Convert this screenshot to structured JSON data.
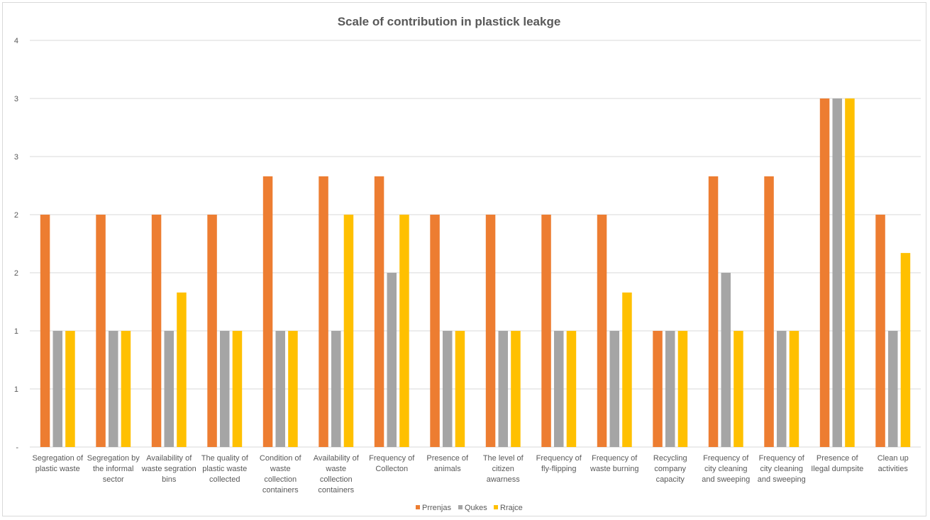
{
  "chart_data": {
    "type": "bar",
    "title": "Scale of contribution in plastick leakge",
    "xlabel": "",
    "ylabel": "",
    "ylim": [
      0,
      3.5
    ],
    "y_tick_values": [
      0,
      0.5,
      1,
      1.5,
      2,
      2.5,
      3,
      3.5
    ],
    "y_tick_labels": [
      "-",
      "1",
      "1",
      "2",
      "2",
      "3",
      "3",
      "4"
    ],
    "grid": true,
    "legend_position": "bottom",
    "categories": [
      [
        "Segregation of",
        "plastic waste"
      ],
      [
        "Segregation by",
        "the informal",
        "sector"
      ],
      [
        "Availability of",
        "waste segration",
        "bins"
      ],
      [
        "The quality of",
        "plastic waste",
        "collected"
      ],
      [
        "Condition of",
        "waste",
        "collection",
        "containers"
      ],
      [
        "Availability of",
        "waste",
        "collection",
        "containers"
      ],
      [
        "Frequency of",
        "Collecton"
      ],
      [
        "Presence of",
        "animals"
      ],
      [
        "The level of",
        "citizen",
        "awarness"
      ],
      [
        "Frequency of",
        "fly-flipping"
      ],
      [
        "Frequency of",
        "waste burning"
      ],
      [
        "Recycling",
        "company",
        "capacity"
      ],
      [
        "Frequency of",
        "city cleaning",
        "and sweeping"
      ],
      [
        "Frequency of",
        "city cleaning",
        "and sweeping"
      ],
      [
        "Presence of",
        "Ilegal dumpsite"
      ],
      [
        "Clean up",
        "activities"
      ]
    ],
    "series": [
      {
        "name": "Prrenjas",
        "color": "#ed7d31",
        "values": [
          2,
          2,
          2,
          2,
          2.33,
          2.33,
          2.33,
          2,
          2,
          2,
          2,
          1,
          2.33,
          2.33,
          3,
          2
        ]
      },
      {
        "name": "Qukes",
        "color": "#a5a5a5",
        "values": [
          1,
          1,
          1,
          1,
          1,
          1,
          1.5,
          1,
          1,
          1,
          1,
          1,
          1.5,
          1,
          3,
          1
        ]
      },
      {
        "name": "Rrajce",
        "color": "#ffc000",
        "values": [
          1,
          1,
          1.33,
          1,
          1,
          2,
          2,
          1,
          1,
          1,
          1.33,
          1,
          1,
          1,
          3,
          1.67
        ]
      }
    ]
  }
}
